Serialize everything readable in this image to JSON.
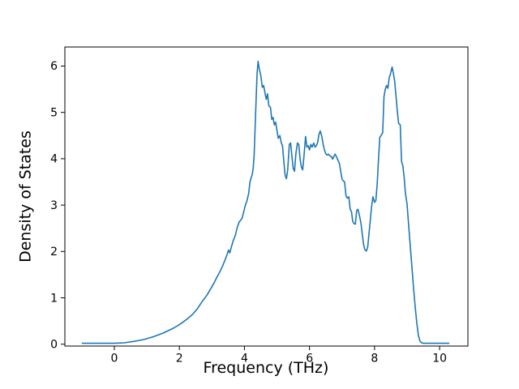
{
  "chart_data": {
    "type": "line",
    "title": "",
    "xlabel": "Frequency (THz)",
    "ylabel": "Density of States",
    "xlim": [
      -1.52,
      10.87
    ],
    "ylim": [
      -0.04,
      6.41
    ],
    "x_ticks": [
      0,
      2,
      4,
      6,
      8,
      10
    ],
    "y_ticks": [
      0,
      1,
      2,
      3,
      4,
      5,
      6
    ],
    "grid": false,
    "legend_position": "none",
    "line_color": "#1f77b4",
    "axis_color": "#000000",
    "background_color": "#ffffff",
    "series": [
      {
        "name": "density-of-states",
        "points": [
          [
            -1.0,
            0.02
          ],
          [
            -0.9,
            0.02
          ],
          [
            -0.75,
            0.02
          ],
          [
            -0.6,
            0.02
          ],
          [
            -0.45,
            0.02
          ],
          [
            -0.3,
            0.02
          ],
          [
            -0.15,
            0.02
          ],
          [
            0.0,
            0.02
          ],
          [
            0.15,
            0.025
          ],
          [
            0.3,
            0.03
          ],
          [
            0.45,
            0.045
          ],
          [
            0.6,
            0.06
          ],
          [
            0.75,
            0.08
          ],
          [
            0.9,
            0.1
          ],
          [
            1.05,
            0.13
          ],
          [
            1.2,
            0.16
          ],
          [
            1.35,
            0.2
          ],
          [
            1.5,
            0.24
          ],
          [
            1.65,
            0.29
          ],
          [
            1.8,
            0.34
          ],
          [
            1.95,
            0.4
          ],
          [
            2.1,
            0.47
          ],
          [
            2.25,
            0.55
          ],
          [
            2.4,
            0.64
          ],
          [
            2.55,
            0.76
          ],
          [
            2.7,
            0.92
          ],
          [
            2.85,
            1.06
          ],
          [
            2.95,
            1.18
          ],
          [
            3.05,
            1.3
          ],
          [
            3.15,
            1.44
          ],
          [
            3.25,
            1.57
          ],
          [
            3.33,
            1.69
          ],
          [
            3.4,
            1.81
          ],
          [
            3.47,
            1.94
          ],
          [
            3.51,
            2.03
          ],
          [
            3.55,
            1.97
          ],
          [
            3.6,
            2.1
          ],
          [
            3.65,
            2.22
          ],
          [
            3.72,
            2.35
          ],
          [
            3.78,
            2.52
          ],
          [
            3.84,
            2.64
          ],
          [
            3.88,
            2.67
          ],
          [
            3.93,
            2.72
          ],
          [
            3.98,
            2.86
          ],
          [
            4.03,
            3.0
          ],
          [
            4.08,
            3.1
          ],
          [
            4.13,
            3.25
          ],
          [
            4.17,
            3.5
          ],
          [
            4.21,
            3.6
          ],
          [
            4.24,
            3.66
          ],
          [
            4.27,
            3.8
          ],
          [
            4.3,
            4.1
          ],
          [
            4.33,
            4.7
          ],
          [
            4.36,
            5.3
          ],
          [
            4.39,
            5.85
          ],
          [
            4.42,
            6.1
          ],
          [
            4.46,
            5.92
          ],
          [
            4.5,
            5.81
          ],
          [
            4.55,
            5.54
          ],
          [
            4.59,
            5.58
          ],
          [
            4.63,
            5.43
          ],
          [
            4.67,
            5.28
          ],
          [
            4.71,
            5.4
          ],
          [
            4.75,
            5.14
          ],
          [
            4.8,
            5.11
          ],
          [
            4.84,
            4.85
          ],
          [
            4.88,
            4.89
          ],
          [
            4.92,
            4.73
          ],
          [
            4.96,
            4.79
          ],
          [
            5.0,
            4.61
          ],
          [
            5.04,
            4.44
          ],
          [
            5.09,
            4.5
          ],
          [
            5.13,
            4.35
          ],
          [
            5.17,
            4.28
          ],
          [
            5.21,
            3.95
          ],
          [
            5.25,
            3.65
          ],
          [
            5.29,
            3.57
          ],
          [
            5.33,
            3.76
          ],
          [
            5.38,
            4.31
          ],
          [
            5.42,
            4.34
          ],
          [
            5.46,
            4.05
          ],
          [
            5.5,
            3.79
          ],
          [
            5.54,
            3.73
          ],
          [
            5.58,
            4.1
          ],
          [
            5.63,
            4.34
          ],
          [
            5.67,
            4.31
          ],
          [
            5.71,
            4.0
          ],
          [
            5.75,
            3.82
          ],
          [
            5.79,
            3.76
          ],
          [
            5.83,
            4.05
          ],
          [
            5.88,
            4.48
          ],
          [
            5.92,
            4.25
          ],
          [
            5.96,
            4.28
          ],
          [
            6.0,
            4.19
          ],
          [
            6.04,
            4.31
          ],
          [
            6.08,
            4.25
          ],
          [
            6.13,
            4.34
          ],
          [
            6.17,
            4.25
          ],
          [
            6.21,
            4.28
          ],
          [
            6.25,
            4.35
          ],
          [
            6.29,
            4.52
          ],
          [
            6.33,
            4.6
          ],
          [
            6.38,
            4.48
          ],
          [
            6.42,
            4.31
          ],
          [
            6.46,
            4.19
          ],
          [
            6.5,
            4.11
          ],
          [
            6.54,
            4.08
          ],
          [
            6.58,
            4.1
          ],
          [
            6.63,
            4.06
          ],
          [
            6.67,
            4.05
          ],
          [
            6.71,
            3.99
          ],
          [
            6.75,
            4.05
          ],
          [
            6.79,
            4.1
          ],
          [
            6.83,
            4.04
          ],
          [
            6.88,
            3.96
          ],
          [
            6.92,
            3.9
          ],
          [
            6.96,
            3.73
          ],
          [
            7.0,
            3.56
          ],
          [
            7.04,
            3.52
          ],
          [
            7.08,
            3.5
          ],
          [
            7.12,
            3.21
          ],
          [
            7.16,
            3.15
          ],
          [
            7.21,
            3.18
          ],
          [
            7.25,
            2.91
          ],
          [
            7.29,
            2.86
          ],
          [
            7.33,
            2.65
          ],
          [
            7.37,
            2.6
          ],
          [
            7.41,
            2.59
          ],
          [
            7.45,
            2.88
          ],
          [
            7.49,
            2.91
          ],
          [
            7.54,
            2.76
          ],
          [
            7.58,
            2.62
          ],
          [
            7.62,
            2.39
          ],
          [
            7.66,
            2.16
          ],
          [
            7.7,
            2.04
          ],
          [
            7.75,
            2.01
          ],
          [
            7.79,
            2.1
          ],
          [
            7.83,
            2.39
          ],
          [
            7.87,
            2.68
          ],
          [
            7.91,
            2.97
          ],
          [
            7.95,
            3.18
          ],
          [
            8.0,
            3.06
          ],
          [
            8.04,
            3.1
          ],
          [
            8.08,
            3.44
          ],
          [
            8.12,
            3.96
          ],
          [
            8.16,
            4.46
          ],
          [
            8.2,
            4.5
          ],
          [
            8.25,
            4.56
          ],
          [
            8.29,
            5.34
          ],
          [
            8.33,
            5.5
          ],
          [
            8.37,
            5.58
          ],
          [
            8.41,
            5.52
          ],
          [
            8.45,
            5.74
          ],
          [
            8.5,
            5.86
          ],
          [
            8.54,
            5.98
          ],
          [
            8.58,
            5.84
          ],
          [
            8.62,
            5.66
          ],
          [
            8.66,
            5.35
          ],
          [
            8.7,
            5.02
          ],
          [
            8.74,
            4.76
          ],
          [
            8.79,
            4.73
          ],
          [
            8.83,
            3.94
          ],
          [
            8.87,
            3.85
          ],
          [
            8.91,
            3.6
          ],
          [
            8.95,
            3.25
          ],
          [
            9.0,
            3.02
          ],
          [
            9.05,
            2.55
          ],
          [
            9.1,
            2.1
          ],
          [
            9.15,
            1.65
          ],
          [
            9.2,
            1.2
          ],
          [
            9.25,
            0.8
          ],
          [
            9.3,
            0.45
          ],
          [
            9.35,
            0.18
          ],
          [
            9.4,
            0.06
          ],
          [
            9.45,
            0.03
          ],
          [
            9.5,
            0.02
          ],
          [
            9.6,
            0.02
          ],
          [
            9.75,
            0.02
          ],
          [
            9.9,
            0.02
          ],
          [
            10.05,
            0.02
          ],
          [
            10.2,
            0.02
          ],
          [
            10.3,
            0.02
          ]
        ]
      }
    ]
  }
}
